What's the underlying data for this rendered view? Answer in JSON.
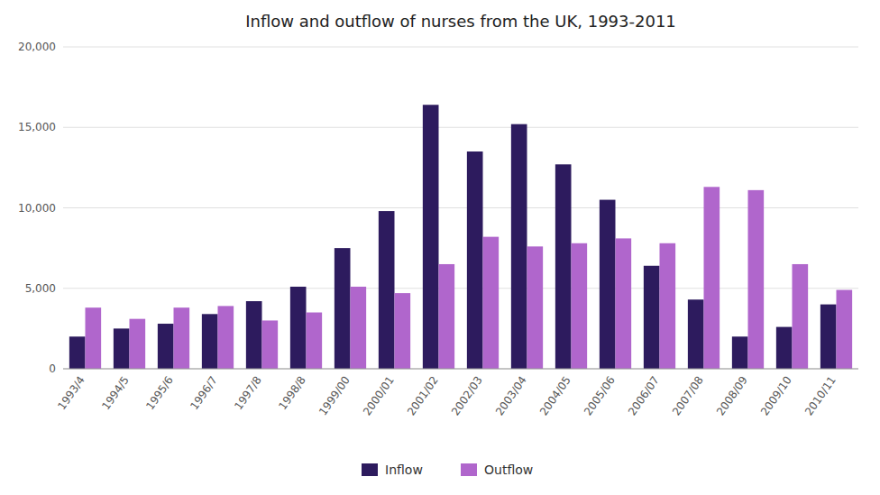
{
  "chart_data": {
    "type": "bar",
    "title": "Inflow and outflow of nurses from the UK, 1993-2011",
    "categories": [
      "1993/4",
      "1994/5",
      "1995/6",
      "1996/7",
      "1997/8",
      "1998/8",
      "1999/00",
      "2000/01",
      "2001/02",
      "2002/03",
      "2003/04",
      "2004/05",
      "2005/06",
      "2006/07",
      "2007/08",
      "2008/09",
      "2009/10",
      "2010/11"
    ],
    "series": [
      {
        "name": "Inflow",
        "color": "#2d1b5e",
        "values": [
          2000,
          2500,
          2800,
          3400,
          4200,
          5100,
          7500,
          9800,
          16400,
          13500,
          15200,
          12700,
          10500,
          6400,
          4300,
          2000,
          2600,
          4000
        ]
      },
      {
        "name": "Outflow",
        "color": "#b066cc",
        "values": [
          3800,
          3100,
          3800,
          3900,
          3000,
          3500,
          5100,
          4700,
          6500,
          8200,
          7600,
          7800,
          8100,
          7800,
          11300,
          11100,
          6500,
          4900
        ]
      }
    ],
    "ylim": [
      0,
      20000
    ],
    "yticks": [
      0,
      {
        "value": 5000,
        "label": "5,000"
      },
      {
        "value": 10000,
        "label": "10,000"
      },
      {
        "value": 15000,
        "label": "15,000"
      },
      {
        "value": 20000,
        "label": "20,000"
      }
    ],
    "grid": true,
    "legend": "bottom"
  }
}
